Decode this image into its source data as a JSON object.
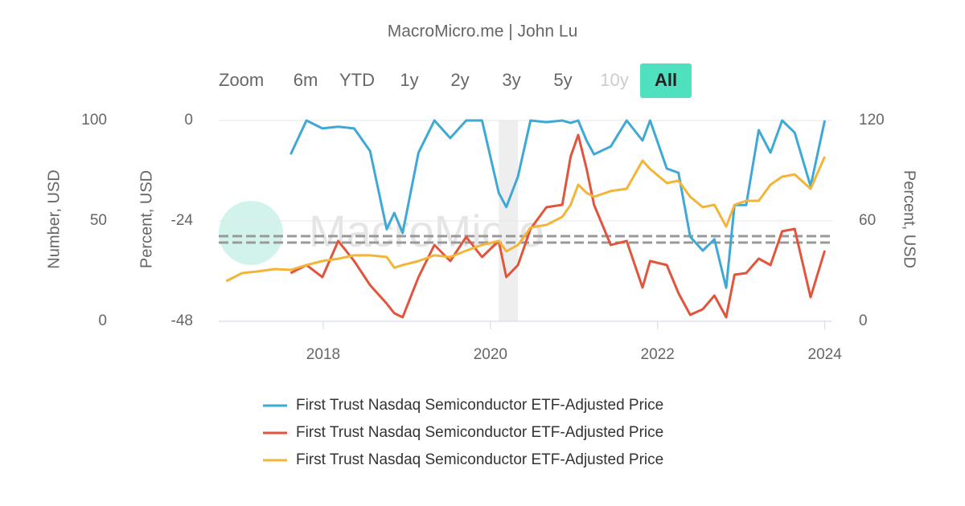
{
  "chart_data": {
    "type": "line",
    "title": "MacroMicro.me | John Lu",
    "watermark": "MacroMicro",
    "range_selector": {
      "label": "Zoom",
      "buttons": [
        "6m",
        "YTD",
        "1y",
        "2y",
        "3y",
        "5y",
        "10y",
        "All"
      ],
      "disabled": [
        "10y"
      ],
      "selected": "All"
    },
    "ylabel": "Number, USD",
    "ylim": [
      0,
      100
    ],
    "yticks": [
      0,
      50,
      100
    ],
    "y2label": "Percent, USD",
    "y2lim": [
      -48,
      0
    ],
    "y2ticks": [
      -48,
      -24,
      0
    ],
    "y3label": "Percent, USD",
    "y3lim": [
      0,
      120
    ],
    "y3ticks": [
      0,
      60,
      120
    ],
    "xlim": [
      2016.75,
      2024.09
    ],
    "xticks": [
      2018,
      2020,
      2022,
      2024
    ],
    "grid": true,
    "reference_lines": [
      {
        "axis": "y",
        "value": 42.4,
        "color": "#999999"
      },
      {
        "axis": "y",
        "value": 39.2,
        "color": "#999999"
      }
    ],
    "plot_bands": [
      {
        "from": 2020.1,
        "to": 2020.33,
        "color": "#eeeeee"
      }
    ],
    "x": [
      2016.84,
      2017.03,
      2017.22,
      2017.42,
      2017.61,
      2017.8,
      2017.99,
      2018.18,
      2018.37,
      2018.56,
      2018.76,
      2018.85,
      2018.95,
      2019.14,
      2019.33,
      2019.52,
      2019.71,
      2019.9,
      2020.1,
      2020.19,
      2020.33,
      2020.48,
      2020.67,
      2020.86,
      2020.96,
      2021.05,
      2021.15,
      2021.24,
      2021.44,
      2021.63,
      2021.82,
      2021.91,
      2022.11,
      2022.25,
      2022.39,
      2022.54,
      2022.68,
      2022.82,
      2022.92,
      2023.06,
      2023.21,
      2023.35,
      2023.49,
      2023.64,
      2023.83,
      2024.0
    ],
    "series": [
      {
        "name": "First Trust Nasdaq Semiconductor ETF-Adjusted Price",
        "color": "#3ea8d6",
        "axis": "y2",
        "values": [
          null,
          null,
          null,
          null,
          -8.1,
          0,
          -1.9,
          -1.5,
          -1.9,
          -7.3,
          -26,
          -22.1,
          -26.9,
          -7.7,
          0,
          -4.2,
          0,
          0,
          -17.3,
          -20.7,
          -13.4,
          0,
          -0.4,
          0,
          -0.6,
          0,
          -4.8,
          -8.1,
          -6.2,
          0,
          -4.8,
          0,
          -11.5,
          -12.5,
          -27.8,
          -31.1,
          -28.4,
          -40,
          -20.2,
          -20.2,
          -2.3,
          -7.7,
          0,
          -2.9,
          -15.7,
          0
        ]
      },
      {
        "name": "First Trust Nasdaq Semiconductor ETF-Adjusted Price",
        "color": "#e2553c",
        "axis": "y",
        "values": [
          null,
          null,
          null,
          null,
          24,
          28,
          22,
          40,
          30,
          18,
          8.8,
          4,
          2,
          22,
          38,
          30,
          42,
          32,
          40,
          22,
          28,
          46,
          56.8,
          58,
          82,
          92.8,
          76,
          58,
          38,
          40,
          16.8,
          30,
          28,
          14,
          3.2,
          6,
          12.8,
          2,
          23.2,
          24,
          31.2,
          28,
          44.8,
          46,
          12,
          35.2
        ]
      },
      {
        "name": "First Trust Nasdaq Semiconductor ETF-Adjusted Price",
        "color": "#f2b53a",
        "axis": "y3",
        "values": [
          24,
          28.8,
          29.8,
          31.2,
          30.7,
          33.6,
          36,
          37.4,
          39.4,
          39.4,
          38.4,
          32,
          33.6,
          36,
          39.4,
          38.4,
          42.2,
          45.6,
          48,
          41.8,
          45.6,
          56,
          57.6,
          62.4,
          69.6,
          81.6,
          76.8,
          74.4,
          77.8,
          79.2,
          96,
          91,
          82.6,
          84,
          74.4,
          68.2,
          69.6,
          56.6,
          69.6,
          72,
          72,
          81.6,
          86.4,
          87.8,
          79.2,
          98.4
        ]
      }
    ]
  }
}
